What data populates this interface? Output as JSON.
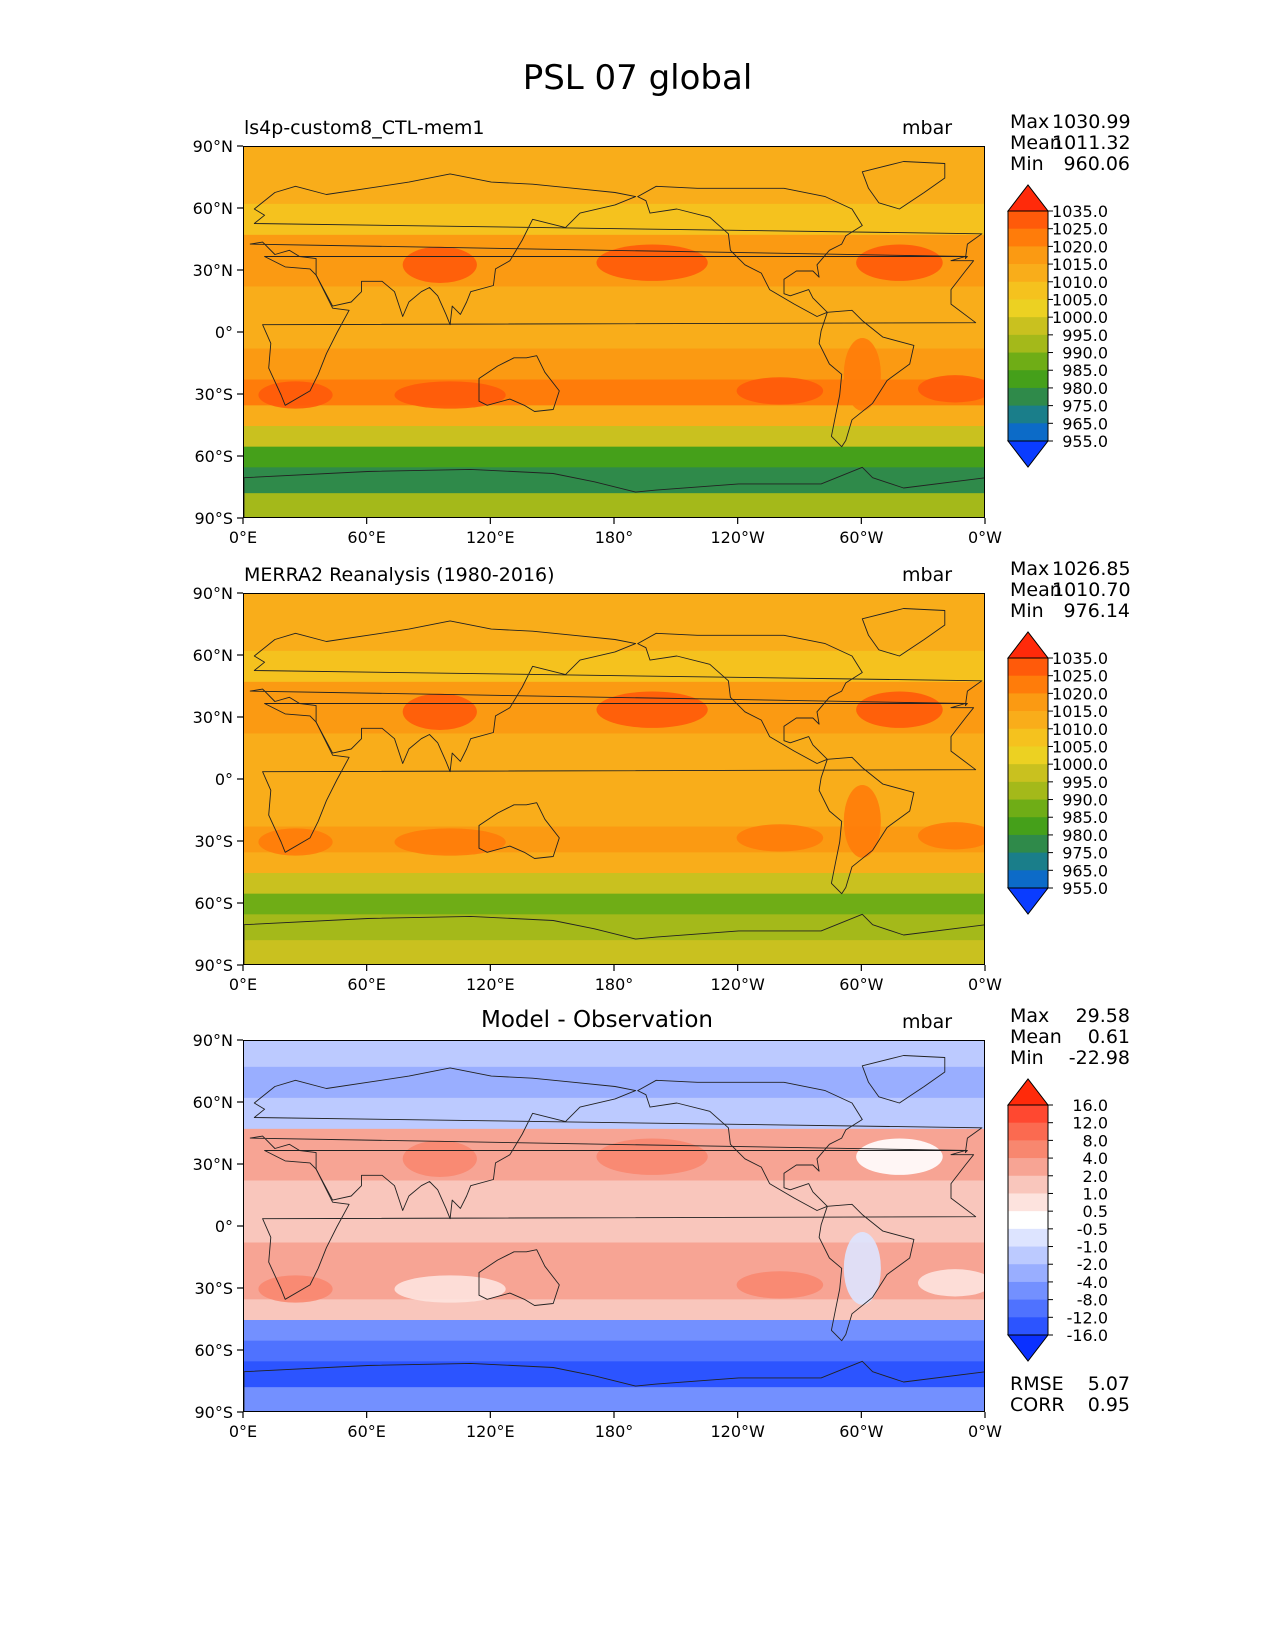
{
  "title": "PSL 07 global",
  "panels": [
    {
      "id": "model",
      "title": "ls4p-custom8_CTL-mem1",
      "units": "mbar",
      "stats": [
        {
          "label": "Max",
          "value": "1030.99"
        },
        {
          "label": "Mean",
          "value": "1011.32"
        },
        {
          "label": "Min",
          "value": "960.06"
        }
      ]
    },
    {
      "id": "obs",
      "title": "MERRA2 Reanalysis (1980-2016)",
      "units": "mbar",
      "stats": [
        {
          "label": "Max",
          "value": "1026.85"
        },
        {
          "label": "Mean",
          "value": "1010.70"
        },
        {
          "label": "Min",
          "value": "976.14"
        }
      ]
    },
    {
      "id": "diff",
      "title": "Model - Observation",
      "units": "mbar",
      "stats": [
        {
          "label": "Max",
          "value": "29.58"
        },
        {
          "label": "Mean",
          "value": "0.61"
        },
        {
          "label": "Min",
          "value": "-22.98"
        }
      ],
      "metrics": [
        {
          "label": "RMSE",
          "value": "5.07"
        },
        {
          "label": "CORR",
          "value": "0.95"
        }
      ]
    }
  ],
  "chart_data": [
    {
      "type": "heatmap",
      "title": "ls4p-custom8_CTL-mem1",
      "variable": "PSL",
      "units": "mbar",
      "xticks": [
        "0°E",
        "60°E",
        "120°E",
        "180°",
        "120°W",
        "60°W",
        "0°W"
      ],
      "yticks": [
        "90°N",
        "60°N",
        "30°N",
        "0°",
        "30°S",
        "60°S",
        "90°S"
      ],
      "xlim": [
        0,
        360
      ],
      "ylim": [
        -90,
        90
      ],
      "colorbar_levels": [
        "1035.0",
        "1025.0",
        "1020.0",
        "1015.0",
        "1010.0",
        "1005.0",
        "1000.0",
        "995.0",
        "990.0",
        "985.0",
        "980.0",
        "975.0",
        "965.0",
        "955.0"
      ],
      "colorbar_colors": [
        "#ff2a0a",
        "#ff5a0a",
        "#ff7c0a",
        "#fb9a12",
        "#f9ad1a",
        "#f5c21e",
        "#ecd122",
        "#c9c11f",
        "#a4b91a",
        "#6fad16",
        "#45a01a",
        "#2f8a4a",
        "#1a7e8a",
        "#0c6bc8",
        "#0a3cff"
      ],
      "latitude_profile": [
        {
          "lat": 85,
          "value": 1013
        },
        {
          "lat": 70,
          "value": 1010
        },
        {
          "lat": 55,
          "value": 1008
        },
        {
          "lat": 40,
          "value": 1016
        },
        {
          "lat": 30,
          "value": 1019
        },
        {
          "lat": 15,
          "value": 1012
        },
        {
          "lat": 0,
          "value": 1011
        },
        {
          "lat": -15,
          "value": 1015
        },
        {
          "lat": -30,
          "value": 1021
        },
        {
          "lat": -40,
          "value": 1013
        },
        {
          "lat": -50,
          "value": 995
        },
        {
          "lat": -60,
          "value": 980
        },
        {
          "lat": -70,
          "value": 975
        },
        {
          "lat": -85,
          "value": 990
        }
      ]
    },
    {
      "type": "heatmap",
      "title": "MERRA2 Reanalysis (1980-2016)",
      "variable": "PSL",
      "units": "mbar",
      "xticks": [
        "0°E",
        "60°E",
        "120°E",
        "180°",
        "120°W",
        "60°W",
        "0°W"
      ],
      "yticks": [
        "90°N",
        "60°N",
        "30°N",
        "0°",
        "30°S",
        "60°S",
        "90°S"
      ],
      "xlim": [
        0,
        360
      ],
      "ylim": [
        -90,
        90
      ],
      "colorbar_levels": [
        "1035.0",
        "1025.0",
        "1020.0",
        "1015.0",
        "1010.0",
        "1005.0",
        "1000.0",
        "995.0",
        "990.0",
        "985.0",
        "980.0",
        "975.0",
        "965.0",
        "955.0"
      ],
      "colorbar_colors": [
        "#ff2a0a",
        "#ff5a0a",
        "#ff7c0a",
        "#fb9a12",
        "#f9ad1a",
        "#f5c21e",
        "#ecd122",
        "#c9c11f",
        "#a4b91a",
        "#6fad16",
        "#45a01a",
        "#2f8a4a",
        "#1a7e8a",
        "#0c6bc8",
        "#0a3cff"
      ],
      "latitude_profile": [
        {
          "lat": 85,
          "value": 1012
        },
        {
          "lat": 70,
          "value": 1010
        },
        {
          "lat": 55,
          "value": 1008
        },
        {
          "lat": 40,
          "value": 1015
        },
        {
          "lat": 30,
          "value": 1017
        },
        {
          "lat": 15,
          "value": 1012
        },
        {
          "lat": 0,
          "value": 1011
        },
        {
          "lat": -15,
          "value": 1014
        },
        {
          "lat": -30,
          "value": 1018
        },
        {
          "lat": -40,
          "value": 1010
        },
        {
          "lat": -50,
          "value": 998
        },
        {
          "lat": -60,
          "value": 987
        },
        {
          "lat": -70,
          "value": 992
        },
        {
          "lat": -85,
          "value": 995
        }
      ]
    },
    {
      "type": "heatmap",
      "title": "Model - Observation",
      "variable": "PSL difference",
      "units": "mbar",
      "xticks": [
        "0°E",
        "60°E",
        "120°E",
        "180°",
        "120°W",
        "60°W",
        "0°W"
      ],
      "yticks": [
        "90°N",
        "60°N",
        "30°N",
        "0°",
        "30°S",
        "60°S",
        "90°S"
      ],
      "xlim": [
        0,
        360
      ],
      "ylim": [
        -90,
        90
      ],
      "colorbar_levels": [
        "16.0",
        "12.0",
        "8.0",
        "4.0",
        "2.0",
        "1.0",
        "0.5",
        "-0.5",
        "-1.0",
        "-2.0",
        "-4.0",
        "-8.0",
        "-12.0",
        "-16.0"
      ],
      "colorbar_colors": [
        "#ff2a0a",
        "#ff4830",
        "#fb6a50",
        "#f8876f",
        "#f7a494",
        "#f9c6bc",
        "#fde3de",
        "#ffffff",
        "#dde4ff",
        "#bccaff",
        "#99aeff",
        "#7390ff",
        "#4f72ff",
        "#2c54ff",
        "#0a30ff"
      ],
      "latitude_profile": [
        {
          "lat": 85,
          "value": -1.5
        },
        {
          "lat": 70,
          "value": -4
        },
        {
          "lat": 55,
          "value": -2
        },
        {
          "lat": 40,
          "value": 3
        },
        {
          "lat": 30,
          "value": 2.5
        },
        {
          "lat": 15,
          "value": 1.5
        },
        {
          "lat": 0,
          "value": 1
        },
        {
          "lat": -15,
          "value": 2
        },
        {
          "lat": -30,
          "value": 3.5
        },
        {
          "lat": -40,
          "value": 1.5
        },
        {
          "lat": -50,
          "value": -6
        },
        {
          "lat": -60,
          "value": -9
        },
        {
          "lat": -70,
          "value": -14
        },
        {
          "lat": -85,
          "value": -8
        }
      ]
    }
  ]
}
